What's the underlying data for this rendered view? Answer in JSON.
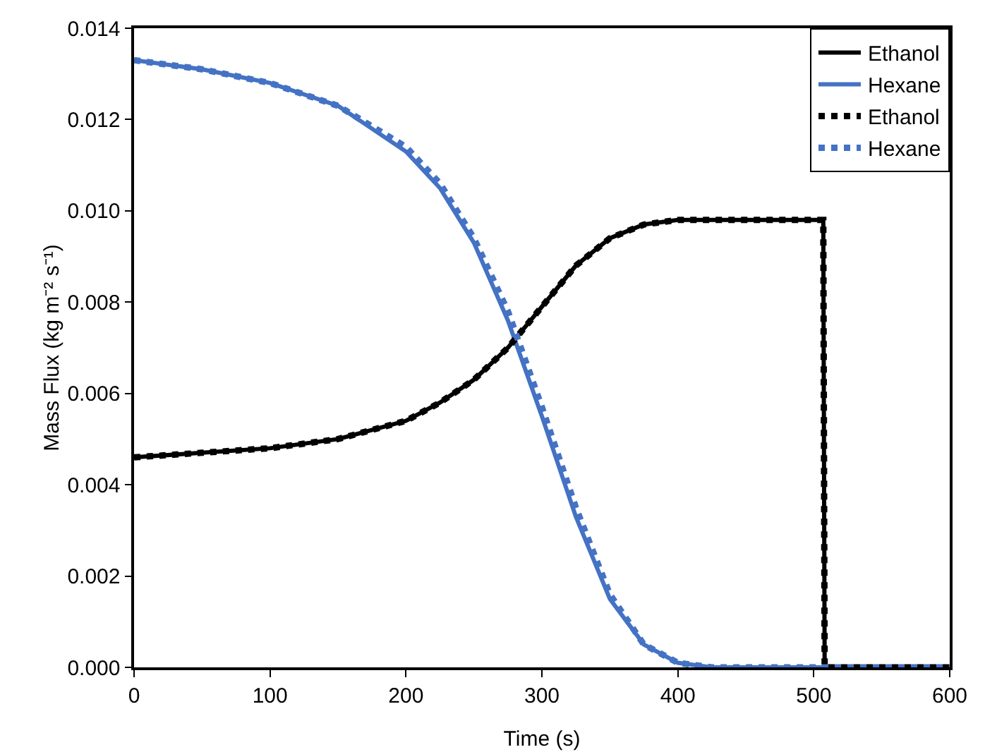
{
  "chart_data": {
    "type": "line",
    "xlabel": "Time (s)",
    "ylabel": "Mass Flux (kg m⁻² s⁻¹)",
    "x": [
      0,
      50,
      100,
      150,
      200,
      225,
      250,
      275,
      300,
      325,
      350,
      375,
      400,
      425,
      450,
      480,
      507,
      508,
      550,
      600
    ],
    "series": [
      {
        "name": "Ethanol",
        "color": "#000000",
        "line_style": "solid",
        "values": [
          0.0046,
          0.0047,
          0.0048,
          0.005,
          0.0054,
          0.0058,
          0.0063,
          0.007,
          0.0079,
          0.0088,
          0.0094,
          0.0097,
          0.0098,
          0.0098,
          0.0098,
          0.0098,
          0.0098,
          0,
          0,
          0
        ]
      },
      {
        "name": "Hexane",
        "color": "#4472c4",
        "line_style": "solid",
        "values": [
          0.0133,
          0.0131,
          0.0128,
          0.0123,
          0.0113,
          0.0105,
          0.0093,
          0.0076,
          0.0055,
          0.0033,
          0.0015,
          0.0005,
          0.0001,
          0,
          0,
          0,
          0,
          0,
          0,
          0
        ]
      },
      {
        "name": "Ethanol",
        "color": "#000000",
        "line_style": "dotted",
        "values": [
          0.0046,
          0.0047,
          0.0048,
          0.005,
          0.0054,
          0.0058,
          0.0063,
          0.007,
          0.0079,
          0.0088,
          0.0094,
          0.0097,
          0.0098,
          0.0098,
          0.0098,
          0.0098,
          0.0098,
          0,
          0,
          0
        ]
      },
      {
        "name": "Hexane",
        "color": "#4472c4",
        "line_style": "dotted",
        "values": [
          0.0133,
          0.0131,
          0.0128,
          0.0123,
          0.0114,
          0.0106,
          0.0094,
          0.0078,
          0.0057,
          0.0035,
          0.0016,
          0.0005,
          0.0001,
          0,
          0,
          0,
          0,
          0,
          0,
          0
        ]
      }
    ],
    "xlim": [
      0,
      600
    ],
    "xticks": [
      0,
      100,
      200,
      300,
      400,
      500,
      600
    ],
    "ylim": [
      0,
      0.014
    ],
    "yticks": [
      {
        "value": 0,
        "label": "0.000"
      },
      {
        "value": 0.002,
        "label": "0.002"
      },
      {
        "value": 0.004,
        "label": "0.004"
      },
      {
        "value": 0.006,
        "label": "0.006"
      },
      {
        "value": 0.008,
        "label": "0.008"
      },
      {
        "value": 0.01,
        "label": "0.010"
      },
      {
        "value": 0.012,
        "label": "0.012"
      },
      {
        "value": 0.014,
        "label": "0.014"
      }
    ],
    "grid": false,
    "legend": "top right"
  }
}
